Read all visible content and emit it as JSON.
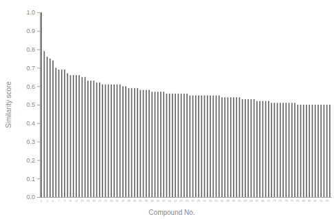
{
  "chart_data": {
    "type": "bar",
    "x_label": "Compound No.",
    "y_label": "Similarity score",
    "categories": [
      "2",
      null,
      "5",
      null,
      "6",
      null,
      "7",
      null,
      "3",
      null,
      "11",
      null,
      "12",
      null,
      "13",
      null,
      "14",
      null,
      "18",
      null,
      "21",
      null,
      "22",
      null,
      "23",
      null,
      "25",
      null,
      "26",
      null,
      "28",
      null,
      "30",
      null,
      "31",
      null,
      "33",
      null,
      "34",
      null,
      "35",
      null,
      "37",
      null,
      "40",
      null,
      "41",
      null,
      "42",
      null,
      "45",
      null,
      "47",
      null,
      "49",
      null,
      "50",
      null,
      "53",
      null,
      "54",
      null,
      "56",
      null,
      "58",
      null,
      "59",
      null,
      "61",
      null,
      "63",
      null,
      "64",
      null,
      "67",
      null,
      "69",
      null,
      "70",
      null,
      "73",
      null,
      "75",
      null,
      "78",
      null,
      "79",
      null,
      "81",
      null,
      "83",
      null,
      "85",
      null,
      "87",
      null,
      "90",
      null,
      "92",
      null
    ],
    "values": [
      1.0,
      0.79,
      0.76,
      0.75,
      0.74,
      0.7,
      0.69,
      0.69,
      0.69,
      0.67,
      0.66,
      0.66,
      0.66,
      0.66,
      0.65,
      0.65,
      0.63,
      0.63,
      0.63,
      0.62,
      0.62,
      0.61,
      0.61,
      0.61,
      0.61,
      0.61,
      0.61,
      0.61,
      0.6,
      0.6,
      0.59,
      0.59,
      0.59,
      0.59,
      0.58,
      0.58,
      0.58,
      0.58,
      0.57,
      0.57,
      0.57,
      0.57,
      0.57,
      0.56,
      0.56,
      0.56,
      0.56,
      0.56,
      0.56,
      0.56,
      0.56,
      0.55,
      0.55,
      0.55,
      0.55,
      0.55,
      0.55,
      0.55,
      0.55,
      0.55,
      0.55,
      0.55,
      0.54,
      0.54,
      0.54,
      0.54,
      0.54,
      0.54,
      0.54,
      0.53,
      0.53,
      0.53,
      0.53,
      0.53,
      0.52,
      0.52,
      0.52,
      0.52,
      0.52,
      0.51,
      0.51,
      0.51,
      0.51,
      0.51,
      0.51,
      0.51,
      0.51,
      0.51,
      0.5,
      0.5,
      0.5,
      0.5,
      0.5,
      0.5,
      0.5,
      0.5,
      0.5,
      0.5,
      0.5,
      0.5
    ],
    "color": "#666666",
    "ylim": [
      0,
      1
    ],
    "yticks": [
      {
        "value": 0,
        "label": "0.0"
      },
      {
        "value": 0.1,
        "label": "0.1"
      },
      {
        "value": 0.2,
        "label": "0.2"
      },
      {
        "value": 0.3,
        "label": "0.3"
      },
      {
        "value": 0.4,
        "label": "0.4"
      },
      {
        "value": 0.5,
        "label": "0.5"
      },
      {
        "value": 0.6,
        "label": "0.6"
      },
      {
        "value": 0.7,
        "label": "0.7"
      },
      {
        "value": 0.8,
        "label": "0.8"
      },
      {
        "value": 0.9,
        "label": "0.9"
      },
      {
        "value": 1,
        "label": "1.0"
      }
    ],
    "grid": false
  }
}
